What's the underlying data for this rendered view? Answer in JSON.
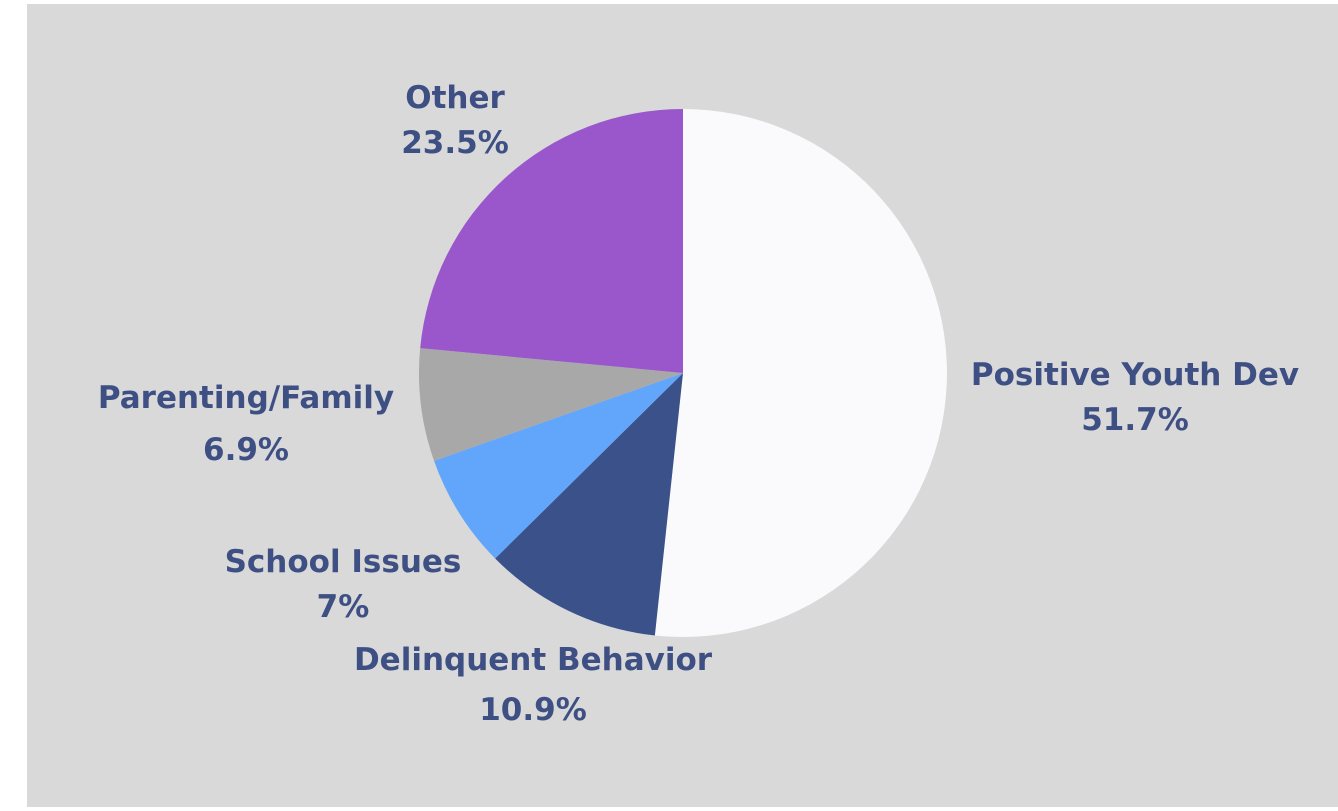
{
  "chart_data": {
    "type": "pie",
    "title": "",
    "start_angle_deg": 0,
    "direction": "clockwise",
    "slices": [
      {
        "label": "Positive Youth Dev",
        "value": 51.7,
        "value_label": "51.7%",
        "color": "#fafafc"
      },
      {
        "label": "Delinquent Behavior",
        "value": 10.9,
        "value_label": "10.9%",
        "color": "#3b5189"
      },
      {
        "label": "School Issues",
        "value": 7.0,
        "value_label": "7%",
        "color": "#62a6fb"
      },
      {
        "label": "Parenting/Family",
        "value": 6.9,
        "value_label": "6.9%",
        "color": "#a8a8a8"
      },
      {
        "label": "Other",
        "value": 23.5,
        "value_label": "23.5%",
        "color": "#9a57cc"
      }
    ]
  },
  "colors": {
    "background": "#d9d9d9",
    "label_text": "#3e4f84"
  }
}
